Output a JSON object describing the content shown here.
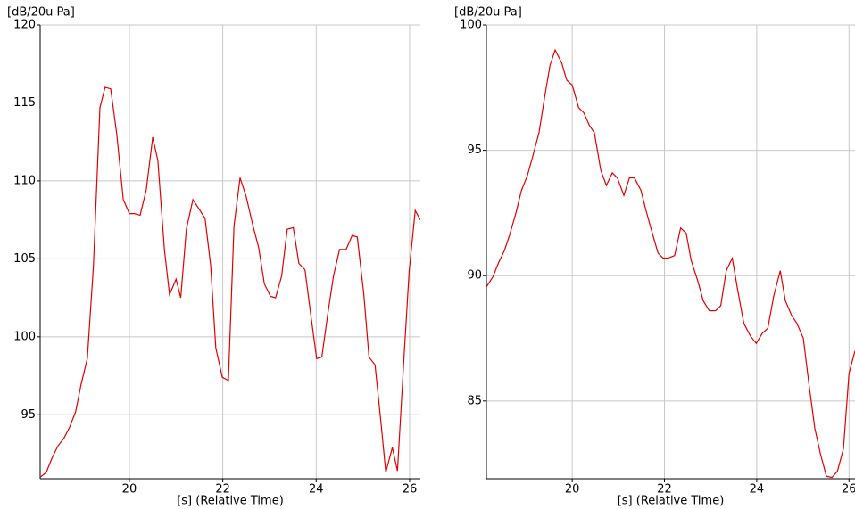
{
  "chart_data": [
    {
      "type": "line",
      "y_label": "[dB/20u Pa]",
      "x_label": "[s] (Relative Time)",
      "color": "#e00000",
      "grid": true,
      "xlim": [
        18.09,
        26.23
      ],
      "ylim": [
        90.9,
        120
      ],
      "xticks": [
        20,
        22,
        24,
        26
      ],
      "yticks": [
        95,
        100,
        105,
        110,
        115,
        120
      ],
      "x": [
        18.09,
        18.22,
        18.34,
        18.47,
        18.6,
        18.72,
        18.85,
        18.97,
        19.1,
        19.23,
        19.37,
        19.48,
        19.6,
        19.73,
        19.87,
        20.0,
        20.11,
        20.23,
        20.36,
        20.5,
        20.61,
        20.75,
        20.86,
        21.0,
        21.1,
        21.22,
        21.36,
        21.47,
        21.62,
        21.74,
        21.85,
        21.99,
        22.12,
        22.24,
        22.37,
        22.5,
        22.64,
        22.77,
        22.89,
        23.02,
        23.13,
        23.26,
        23.38,
        23.51,
        23.63,
        23.76,
        23.88,
        24.01,
        24.12,
        24.25,
        24.37,
        24.5,
        24.64,
        24.77,
        24.88,
        25.02,
        25.13,
        25.26,
        25.38,
        25.49,
        25.63,
        25.74,
        25.88,
        25.99,
        26.12,
        26.23
      ],
      "values": [
        91.0,
        91.3,
        92.2,
        93.0,
        93.5,
        94.2,
        95.2,
        97.0,
        98.6,
        104.5,
        114.7,
        116.0,
        115.9,
        113.0,
        108.8,
        107.9,
        107.9,
        107.8,
        109.4,
        112.8,
        111.3,
        105.6,
        102.7,
        103.7,
        102.5,
        106.9,
        108.8,
        108.3,
        107.6,
        104.6,
        99.3,
        97.4,
        97.2,
        107.1,
        110.2,
        109.0,
        107.2,
        105.7,
        103.4,
        102.6,
        102.5,
        103.9,
        106.9,
        107.0,
        104.7,
        104.3,
        101.5,
        98.6,
        98.7,
        101.5,
        103.9,
        105.6,
        105.6,
        106.5,
        106.4,
        102.7,
        98.7,
        98.2,
        94.7,
        91.3,
        92.9,
        91.4,
        98.7,
        104.2,
        108.1,
        107.5
      ]
    },
    {
      "type": "line",
      "y_label": "[dB/20u Pa]",
      "x_label": "[s] (Relative Time)",
      "color": "#e00000",
      "grid": true,
      "xlim": [
        18.14,
        26.13
      ],
      "ylim": [
        81.9,
        100
      ],
      "xticks": [
        20,
        22,
        24,
        26
      ],
      "yticks": [
        85,
        90,
        95,
        100
      ],
      "x": [
        18.14,
        18.28,
        18.4,
        18.53,
        18.64,
        18.78,
        18.9,
        19.03,
        19.15,
        19.28,
        19.4,
        19.52,
        19.63,
        19.77,
        19.88,
        20.0,
        20.14,
        20.25,
        20.37,
        20.48,
        20.62,
        20.74,
        20.87,
        20.98,
        21.12,
        21.24,
        21.35,
        21.49,
        21.6,
        21.72,
        21.86,
        21.97,
        22.08,
        22.22,
        22.35,
        22.47,
        22.58,
        22.72,
        22.84,
        22.97,
        23.11,
        23.22,
        23.34,
        23.47,
        23.59,
        23.72,
        23.86,
        23.99,
        24.12,
        24.24,
        24.37,
        24.51,
        24.62,
        24.76,
        24.87,
        25.01,
        25.13,
        25.26,
        25.38,
        25.51,
        25.63,
        25.75,
        25.88,
        26.0,
        26.13
      ],
      "values": [
        89.55,
        89.95,
        90.5,
        91.0,
        91.6,
        92.5,
        93.4,
        94.0,
        94.8,
        95.7,
        97.1,
        98.4,
        99.0,
        98.5,
        97.8,
        97.6,
        96.7,
        96.5,
        96.0,
        95.7,
        94.2,
        93.6,
        94.1,
        93.9,
        93.2,
        93.9,
        93.9,
        93.4,
        92.6,
        91.8,
        90.9,
        90.7,
        90.7,
        90.8,
        91.9,
        91.7,
        90.6,
        89.8,
        89.0,
        88.6,
        88.6,
        88.8,
        90.2,
        90.7,
        89.4,
        88.1,
        87.6,
        87.3,
        87.7,
        87.9,
        89.2,
        90.2,
        89.0,
        88.4,
        88.1,
        87.5,
        85.7,
        83.9,
        82.9,
        82.0,
        81.95,
        82.2,
        83.1,
        86.1,
        87.0
      ]
    }
  ]
}
